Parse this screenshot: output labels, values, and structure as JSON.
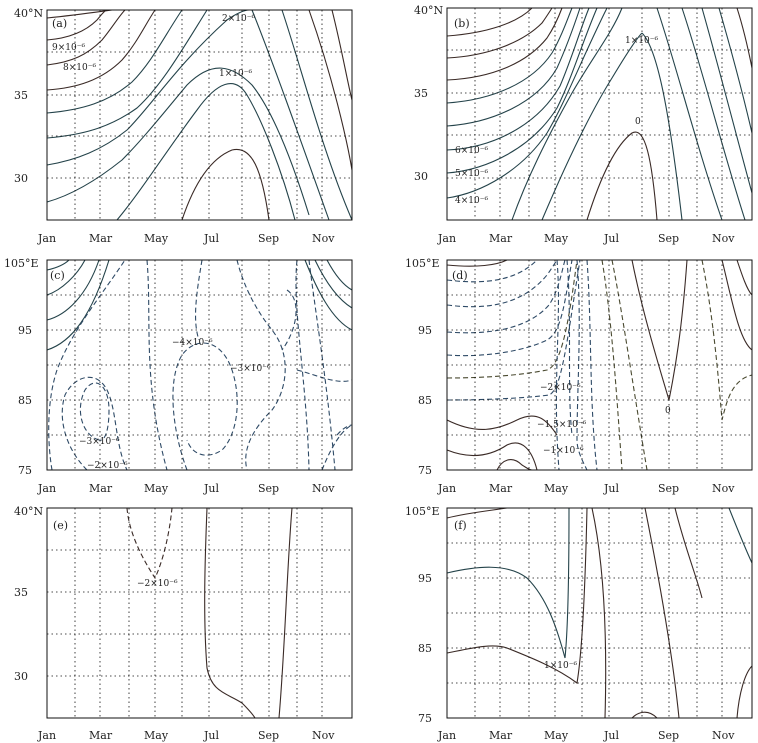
{
  "figure": {
    "description_colors": {
      "solid": "#24434a",
      "solid_dark": "#3a2a26",
      "dashed": "#2e4a66",
      "grid": "#111111"
    }
  },
  "chart_data": [
    {
      "type": "contour",
      "panel_label": "(a)",
      "x_ticks": [
        "Jan",
        "Mar",
        "May",
        "Jul",
        "Sep",
        "Nov"
      ],
      "y_ticks": [
        "30",
        "35",
        "40°N"
      ],
      "contour_labels": [
        "9×10⁻⁶",
        "8×10⁻⁶",
        "2×10⁻⁶",
        "1×10⁻⁶"
      ],
      "grid": true
    },
    {
      "type": "contour",
      "panel_label": "(b)",
      "x_ticks": [
        "Jan",
        "Mar",
        "May",
        "Jul",
        "Sep",
        "Nov"
      ],
      "y_ticks": [
        "30",
        "35",
        "40°N"
      ],
      "contour_labels": [
        "1×10⁻⁶",
        "0",
        "6×10⁻⁶",
        "5×10⁻⁶",
        "4×10⁻⁶"
      ],
      "grid": true
    },
    {
      "type": "contour",
      "panel_label": "(c)",
      "x_ticks": [
        "Jan",
        "Mar",
        "May",
        "Jul",
        "Sep",
        "Nov"
      ],
      "y_ticks": [
        "75",
        "85",
        "95",
        "105°E"
      ],
      "contour_labels": [
        "−4×10⁻⁶",
        "−3×10⁻⁶",
        "−3×10⁻⁶",
        "−2×10⁻⁶"
      ],
      "grid": true
    },
    {
      "type": "contour",
      "panel_label": "(d)",
      "x_ticks": [
        "Jan",
        "Mar",
        "May",
        "Jul",
        "Sep",
        "Nov"
      ],
      "y_ticks": [
        "75",
        "85",
        "95",
        "105°E"
      ],
      "contour_labels": [
        "−2×10⁻⁶",
        "−1.5×10⁻⁶",
        "−1×10⁻⁶",
        "0"
      ],
      "grid": true
    },
    {
      "type": "contour",
      "panel_label": "(e)",
      "x_ticks": [
        "Jan",
        "Mar",
        "May",
        "Jul",
        "Sep",
        "Nov"
      ],
      "y_ticks": [
        "30",
        "35",
        "40°N"
      ],
      "contour_labels": [
        "−2×10⁻⁶"
      ],
      "grid": true
    },
    {
      "type": "contour",
      "panel_label": "(f)",
      "x_ticks": [
        "Jan",
        "Mar",
        "May",
        "Jul",
        "Sep",
        "Nov"
      ],
      "y_ticks": [
        "75",
        "85",
        "95",
        "105°E"
      ],
      "contour_labels": [
        "1×10⁻⁶"
      ],
      "grid": true
    }
  ]
}
